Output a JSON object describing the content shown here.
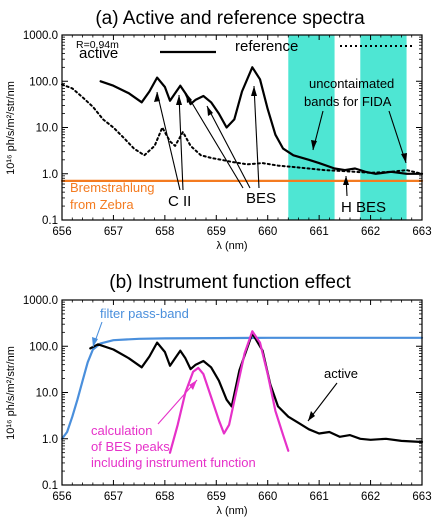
{
  "chart_data": [
    {
      "type": "line",
      "title": "(a) Active and reference spectra",
      "xlabel": "λ (nm)",
      "ylabel": "10¹⁶ ph/s/m²/str/nm",
      "xlim": [
        656,
        663
      ],
      "ylim": [
        0.1,
        1000
      ],
      "y_scale": "log",
      "x_ticks": [
        "656",
        "657",
        "658",
        "659",
        "660",
        "661",
        "662",
        "663"
      ],
      "y_ticks": [
        "0.1",
        "1.0",
        "10.0",
        "100.0",
        "1000.0"
      ],
      "legend_position": "top",
      "series": [
        {
          "name": "active",
          "style": "solid",
          "color": "#000000",
          "points": [
            [
              656.75,
              100
            ],
            [
              657.0,
              80
            ],
            [
              657.3,
              55
            ],
            [
              657.55,
              35
            ],
            [
              657.7,
              60
            ],
            [
              657.85,
              120
            ],
            [
              658.0,
              75
            ],
            [
              658.1,
              38
            ],
            [
              658.2,
              55
            ],
            [
              658.3,
              80
            ],
            [
              658.4,
              55
            ],
            [
              658.5,
              32
            ],
            [
              658.6,
              40
            ],
            [
              658.75,
              48
            ],
            [
              658.9,
              35
            ],
            [
              659.05,
              20
            ],
            [
              659.2,
              10
            ],
            [
              659.35,
              15
            ],
            [
              659.5,
              60
            ],
            [
              659.7,
              200
            ],
            [
              659.85,
              110
            ],
            [
              660.0,
              25
            ],
            [
              660.15,
              7
            ],
            [
              660.3,
              3.5
            ],
            [
              660.5,
              2.5
            ],
            [
              660.8,
              2.0
            ],
            [
              661.0,
              1.7
            ],
            [
              661.3,
              1.3
            ],
            [
              661.5,
              1.2
            ],
            [
              661.7,
              1.3
            ],
            [
              661.9,
              1.1
            ],
            [
              662.1,
              1.0
            ],
            [
              662.4,
              1.1
            ],
            [
              662.7,
              1.0
            ],
            [
              663.0,
              1.0
            ]
          ]
        },
        {
          "name": "reference",
          "style": "dotted",
          "color": "#000000",
          "points": [
            [
              656.0,
              85
            ],
            [
              656.2,
              70
            ],
            [
              656.4,
              45
            ],
            [
              656.6,
              28
            ],
            [
              656.8,
              15
            ],
            [
              657.0,
              10
            ],
            [
              657.2,
              6
            ],
            [
              657.4,
              3.5
            ],
            [
              657.6,
              2.5
            ],
            [
              657.8,
              4
            ],
            [
              657.95,
              10
            ],
            [
              658.1,
              5
            ],
            [
              658.2,
              4
            ],
            [
              658.35,
              8
            ],
            [
              658.5,
              4
            ],
            [
              658.7,
              2.5
            ],
            [
              658.9,
              2.2
            ],
            [
              659.1,
              2.0
            ],
            [
              659.3,
              1.8
            ],
            [
              659.6,
              1.6
            ],
            [
              659.9,
              1.7
            ],
            [
              660.2,
              1.5
            ],
            [
              660.5,
              1.4
            ],
            [
              660.8,
              1.3
            ],
            [
              661.1,
              1.2
            ],
            [
              661.4,
              1.15
            ],
            [
              661.7,
              1.1
            ],
            [
              662.0,
              1.05
            ],
            [
              662.4,
              1.1
            ],
            [
              662.7,
              1.2
            ],
            [
              663.0,
              1.0
            ]
          ]
        },
        {
          "name": "bremsstrahlung",
          "style": "solid",
          "color": "#f47b20",
          "points": [
            [
              656.0,
              0.7
            ],
            [
              663.0,
              0.7
            ]
          ]
        }
      ],
      "shaded_bands": [
        [
          660.4,
          661.3
        ],
        [
          661.8,
          662.7
        ]
      ],
      "band_color": "#4ee6d3",
      "annotations": {
        "r_label": "R=0.94m",
        "uncontaminated": [
          "uncontaimated",
          "bands for FIDA"
        ],
        "brems": [
          "Bremstrahlung",
          "from Zebra"
        ],
        "c2": "C II",
        "bes": "BES",
        "hbes": "H BES",
        "active_label": "active",
        "reference_label": "reference"
      }
    },
    {
      "type": "line",
      "title": "(b) Instrument function effect",
      "xlabel": "λ (nm)",
      "ylabel": "10¹⁶ ph/s/m²/str/nm",
      "xlim": [
        656,
        663
      ],
      "ylim": [
        0.1,
        1000
      ],
      "y_scale": "log",
      "x_ticks": [
        "656",
        "657",
        "658",
        "659",
        "660",
        "661",
        "662",
        "663"
      ],
      "y_ticks": [
        "0.1",
        "1.0",
        "10.0",
        "100.0",
        "1000.0"
      ],
      "series": [
        {
          "name": "filter pass-band",
          "style": "solid",
          "color": "#4a8fdc",
          "points": [
            [
              656.0,
              1.0
            ],
            [
              656.1,
              1.4
            ],
            [
              656.2,
              3
            ],
            [
              656.3,
              7
            ],
            [
              656.4,
              18
            ],
            [
              656.5,
              45
            ],
            [
              656.6,
              85
            ],
            [
              656.75,
              115
            ],
            [
              657.0,
              135
            ],
            [
              657.5,
              145
            ],
            [
              658.0,
              148
            ],
            [
              659.0,
              150
            ],
            [
              660.0,
              152
            ],
            [
              661.0,
              152
            ],
            [
              662.0,
              152
            ],
            [
              663.0,
              152
            ]
          ]
        },
        {
          "name": "active",
          "style": "solid",
          "color": "#000000",
          "points": [
            [
              656.55,
              90
            ],
            [
              656.7,
              110
            ],
            [
              657.0,
              85
            ],
            [
              657.3,
              55
            ],
            [
              657.55,
              35
            ],
            [
              657.7,
              60
            ],
            [
              657.85,
              120
            ],
            [
              658.0,
              75
            ],
            [
              658.1,
              38
            ],
            [
              658.2,
              55
            ],
            [
              658.3,
              80
            ],
            [
              658.4,
              55
            ],
            [
              658.5,
              32
            ],
            [
              658.6,
              40
            ],
            [
              658.75,
              48
            ],
            [
              658.9,
              35
            ],
            [
              659.05,
              18
            ],
            [
              659.2,
              7
            ],
            [
              659.3,
              5
            ],
            [
              659.45,
              30
            ],
            [
              659.7,
              190
            ],
            [
              659.9,
              80
            ],
            [
              660.05,
              15
            ],
            [
              660.2,
              5
            ],
            [
              660.4,
              3
            ],
            [
              660.6,
              2.2
            ],
            [
              660.8,
              1.6
            ],
            [
              661.0,
              1.3
            ],
            [
              661.2,
              1.4
            ],
            [
              661.4,
              1.1
            ],
            [
              661.6,
              1.2
            ],
            [
              661.8,
              1.0
            ],
            [
              662.0,
              0.95
            ],
            [
              662.3,
              1.0
            ],
            [
              662.6,
              0.9
            ],
            [
              663.0,
              0.85
            ]
          ]
        },
        {
          "name": "calculation",
          "style": "solid",
          "color": "#e631c9",
          "points": [
            [
              658.1,
              0.5
            ],
            [
              658.25,
              2
            ],
            [
              658.4,
              10
            ],
            [
              658.55,
              28
            ],
            [
              658.65,
              34
            ],
            [
              658.75,
              25
            ],
            [
              658.9,
              8
            ],
            [
              659.05,
              2.5
            ],
            [
              659.15,
              1.3
            ],
            [
              659.25,
              2
            ],
            [
              659.4,
              12
            ],
            [
              659.55,
              70
            ],
            [
              659.7,
              210
            ],
            [
              659.85,
              120
            ],
            [
              660.0,
              25
            ],
            [
              660.15,
              4
            ],
            [
              660.3,
              1.2
            ],
            [
              660.4,
              0.55
            ]
          ]
        }
      ],
      "annotations": {
        "filter_label": "filter pass-band",
        "active_label": "active",
        "calc": [
          "calculation",
          "of BES peaks",
          "including instrument function"
        ]
      }
    }
  ]
}
